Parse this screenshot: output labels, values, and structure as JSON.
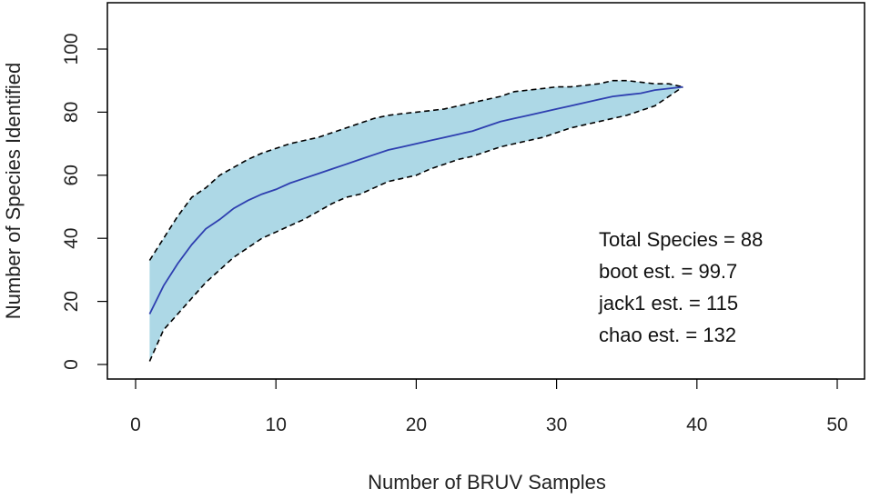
{
  "chart_data": {
    "type": "area",
    "title": "",
    "xlabel": "Number of BRUV Samples",
    "ylabel": "Number of Species Identified",
    "xlim": [
      0,
      50
    ],
    "ylim": [
      0,
      100
    ],
    "x_ticks": [
      0,
      10,
      20,
      30,
      40,
      50
    ],
    "y_ticks": [
      0,
      20,
      40,
      60,
      80,
      100
    ],
    "grid": false,
    "colors": {
      "band_fill": "#add8e6",
      "band_border": "#000000",
      "mean_line": "#2e3fb0"
    },
    "x": [
      1,
      2,
      3,
      4,
      5,
      6,
      7,
      8,
      9,
      10,
      11,
      12,
      13,
      14,
      15,
      16,
      17,
      18,
      19,
      20,
      21,
      22,
      23,
      24,
      25,
      26,
      27,
      28,
      29,
      30,
      31,
      32,
      33,
      34,
      35,
      36,
      37,
      38,
      39
    ],
    "mean": [
      16,
      25,
      32,
      38,
      43,
      46,
      49.5,
      52,
      54,
      55.5,
      57.5,
      59,
      60.5,
      62,
      63.5,
      65,
      66.5,
      68,
      69,
      70,
      71,
      72,
      73,
      74,
      75.5,
      77,
      78,
      79,
      80,
      81,
      82,
      83,
      84,
      85,
      85.5,
      86,
      87,
      87.5,
      88
    ],
    "upper": [
      33,
      40,
      47,
      53,
      56,
      60,
      62.5,
      65,
      67,
      68.5,
      70,
      71,
      72,
      73.5,
      75,
      76.5,
      78,
      79,
      79.5,
      80,
      80.5,
      81,
      82,
      83,
      84,
      85,
      86.5,
      87,
      87.5,
      88,
      88,
      88.5,
      89,
      90,
      90,
      89.5,
      89,
      89,
      88
    ],
    "lower": [
      1,
      11,
      16,
      21,
      26,
      30,
      34,
      37,
      40,
      42,
      44,
      46,
      48.5,
      51,
      53,
      54,
      56,
      58,
      59,
      60,
      62,
      63.5,
      65,
      66,
      67.5,
      69,
      70,
      71,
      72,
      73.5,
      75,
      76,
      77,
      78,
      79,
      80.5,
      82,
      85,
      88
    ],
    "annotations": [
      "Total Species = 88",
      "boot est. = 99.7",
      "jack1 est. = 115",
      "chao est. = 132"
    ]
  }
}
